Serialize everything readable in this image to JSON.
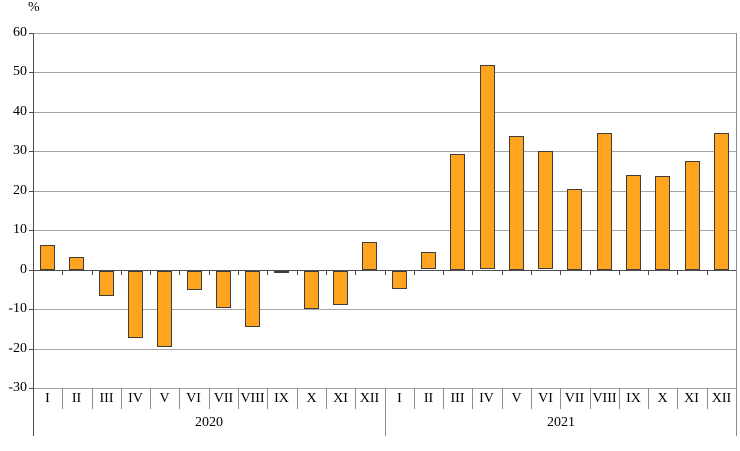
{
  "chart_data": {
    "type": "bar",
    "title": "",
    "xlabel": "",
    "ylabel": "%",
    "ylim": [
      -30,
      60
    ],
    "yticks": [
      60,
      50,
      40,
      30,
      20,
      10,
      0,
      -10,
      -20,
      -30
    ],
    "grid": true,
    "legend": "none",
    "groups": [
      {
        "year": "2020",
        "categories": [
          "I",
          "II",
          "III",
          "IV",
          "V",
          "VI",
          "VII",
          "VIII",
          "IX",
          "X",
          "XI",
          "XII"
        ],
        "values": [
          6.3,
          3.3,
          -6.3,
          -17.0,
          -19.2,
          -4.7,
          -9.4,
          -14.3,
          -0.6,
          -9.7,
          -8.6,
          7.1
        ]
      },
      {
        "year": "2021",
        "categories": [
          "I",
          "II",
          "III",
          "IV",
          "V",
          "VI",
          "VII",
          "VIII",
          "IX",
          "X",
          "XI",
          "XII"
        ],
        "values": [
          -4.6,
          4.4,
          29.3,
          51.8,
          34.0,
          30.0,
          20.5,
          34.7,
          24.1,
          23.8,
          27.6,
          34.7
        ]
      }
    ],
    "colors": {
      "bar_fill": "#FFA41E",
      "bar_border": "#3D3D3D",
      "gridline": "#A6A6A6",
      "axis": "#4D4D4D",
      "frame": "#8C8C8C",
      "text": "#000000"
    }
  }
}
